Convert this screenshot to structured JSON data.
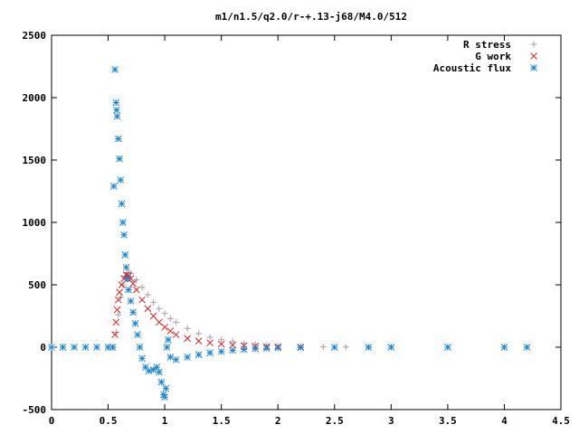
{
  "chart_data": {
    "type": "scatter",
    "title": "m1/n1.5/q2.0/r-+.13-j68/M4.0/512",
    "xlabel": "",
    "ylabel": "",
    "xlim": [
      0,
      4.5
    ],
    "ylim": [
      -500,
      2500
    ],
    "x_ticks": [
      "0",
      "0.5",
      "1",
      "1.5",
      "2",
      "2.5",
      "3",
      "3.5",
      "4",
      "4.5"
    ],
    "y_ticks": [
      "-500",
      "0",
      "500",
      "1000",
      "1500",
      "2000",
      "2500"
    ],
    "legend_position": "top-right",
    "grid": false,
    "series": [
      {
        "name": "R stress",
        "marker": "plus",
        "color": "#a0a0a0",
        "points": [
          [
            0,
            0
          ],
          [
            0.1,
            0
          ],
          [
            0.2,
            0
          ],
          [
            0.3,
            0
          ],
          [
            0.4,
            0
          ],
          [
            0.5,
            0
          ],
          [
            0.55,
            0
          ],
          [
            0.57,
            120
          ],
          [
            0.59,
            260
          ],
          [
            0.61,
            400
          ],
          [
            0.63,
            500
          ],
          [
            0.65,
            570
          ],
          [
            0.67,
            600
          ],
          [
            0.7,
            590
          ],
          [
            0.75,
            540
          ],
          [
            0.8,
            480
          ],
          [
            0.85,
            420
          ],
          [
            0.9,
            360
          ],
          [
            0.95,
            310
          ],
          [
            1.0,
            270
          ],
          [
            1.05,
            230
          ],
          [
            1.1,
            200
          ],
          [
            1.2,
            150
          ],
          [
            1.3,
            110
          ],
          [
            1.4,
            80
          ],
          [
            1.5,
            60
          ],
          [
            1.6,
            45
          ],
          [
            1.7,
            32
          ],
          [
            1.8,
            22
          ],
          [
            1.9,
            15
          ],
          [
            2.0,
            10
          ],
          [
            2.2,
            6
          ],
          [
            2.4,
            3
          ],
          [
            2.6,
            2
          ],
          [
            2.8,
            1
          ],
          [
            3.0,
            0
          ],
          [
            3.5,
            0
          ],
          [
            4.0,
            0
          ],
          [
            4.2,
            0
          ]
        ]
      },
      {
        "name": "G work",
        "marker": "cross",
        "color": "#e02020",
        "points": [
          [
            0.56,
            100
          ],
          [
            0.57,
            200
          ],
          [
            0.58,
            300
          ],
          [
            0.59,
            380
          ],
          [
            0.6,
            440
          ],
          [
            0.62,
            500
          ],
          [
            0.64,
            550
          ],
          [
            0.66,
            580
          ],
          [
            0.68,
            575
          ],
          [
            0.7,
            550
          ],
          [
            0.72,
            510
          ],
          [
            0.75,
            460
          ],
          [
            0.8,
            380
          ],
          [
            0.85,
            310
          ],
          [
            0.9,
            250
          ],
          [
            0.95,
            200
          ],
          [
            1.0,
            160
          ],
          [
            1.05,
            130
          ],
          [
            1.1,
            100
          ],
          [
            1.2,
            70
          ],
          [
            1.3,
            50
          ],
          [
            1.4,
            35
          ],
          [
            1.5,
            25
          ],
          [
            1.6,
            17
          ],
          [
            1.7,
            12
          ],
          [
            1.8,
            8
          ],
          [
            1.9,
            5
          ],
          [
            2.0,
            3
          ],
          [
            2.2,
            1
          ]
        ]
      },
      {
        "name": "Acoustic flux",
        "marker": "star",
        "color": "#1a86d6",
        "points": [
          [
            0,
            0
          ],
          [
            0.1,
            0
          ],
          [
            0.2,
            0
          ],
          [
            0.3,
            0
          ],
          [
            0.4,
            0
          ],
          [
            0.5,
            0
          ],
          [
            0.54,
            0
          ],
          [
            0.55,
            1290
          ],
          [
            0.56,
            2225
          ],
          [
            0.57,
            1960
          ],
          [
            0.575,
            1900
          ],
          [
            0.58,
            1850
          ],
          [
            0.59,
            1670
          ],
          [
            0.6,
            1510
          ],
          [
            0.61,
            1340
          ],
          [
            0.62,
            1150
          ],
          [
            0.63,
            1000
          ],
          [
            0.64,
            900
          ],
          [
            0.65,
            740
          ],
          [
            0.66,
            640
          ],
          [
            0.67,
            550
          ],
          [
            0.68,
            460
          ],
          [
            0.7,
            370
          ],
          [
            0.72,
            280
          ],
          [
            0.74,
            190
          ],
          [
            0.76,
            100
          ],
          [
            0.78,
            0
          ],
          [
            0.8,
            -90
          ],
          [
            0.83,
            -160
          ],
          [
            0.86,
            -190
          ],
          [
            0.9,
            -180
          ],
          [
            0.93,
            -160
          ],
          [
            0.95,
            -200
          ],
          [
            0.97,
            -280
          ],
          [
            0.99,
            -380
          ],
          [
            1.0,
            -400
          ],
          [
            1.01,
            -330
          ],
          [
            1.02,
            0
          ],
          [
            1.03,
            60
          ],
          [
            1.05,
            -80
          ],
          [
            1.1,
            -100
          ],
          [
            1.2,
            -80
          ],
          [
            1.3,
            -60
          ],
          [
            1.4,
            -45
          ],
          [
            1.5,
            -35
          ],
          [
            1.6,
            -25
          ],
          [
            1.7,
            -18
          ],
          [
            1.8,
            -12
          ],
          [
            1.9,
            -8
          ],
          [
            2.0,
            -5
          ],
          [
            2.2,
            -3
          ],
          [
            2.5,
            -1
          ],
          [
            2.8,
            0
          ],
          [
            3.0,
            0
          ],
          [
            3.5,
            0
          ],
          [
            4.0,
            0
          ],
          [
            4.2,
            0
          ]
        ]
      }
    ]
  }
}
